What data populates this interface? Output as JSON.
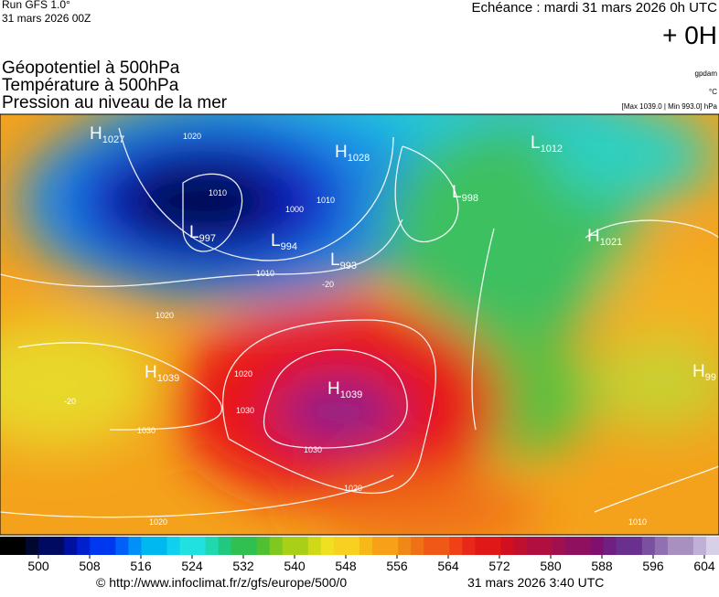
{
  "header": {
    "run": "Run GFS 1.0°",
    "date": "31 mars 2026 00Z",
    "echeance": "Echéance : mardi 31 mars 2026 0h UTC",
    "offset": "+ 0H"
  },
  "titles": [
    "Géopotentiel à 500hPa",
    "Température à 500hPa",
    "Pression au niveau de la mer"
  ],
  "units": [
    "gpdam",
    "°C",
    "[Max 1039.0 | Min 993.0] hPa"
  ],
  "centers": [
    {
      "letter": "H",
      "value": "1027"
    },
    {
      "letter": "H",
      "value": "1028"
    },
    {
      "letter": "L",
      "value": "998"
    },
    {
      "letter": "L",
      "value": "1012"
    },
    {
      "letter": "H",
      "value": "1021"
    },
    {
      "letter": "L",
      "value": "997"
    },
    {
      "letter": "L",
      "value": "994"
    },
    {
      "letter": "L",
      "value": "993"
    },
    {
      "letter": "H",
      "value": "1039"
    },
    {
      "letter": "H",
      "value": "1039"
    },
    {
      "letter": "H",
      "value": "99"
    }
  ],
  "isobar_labels": [
    "1020",
    "1010",
    "1000",
    "1010",
    "1010",
    "1020",
    "1020",
    "1030",
    "1030",
    "1030",
    "1020",
    "1020",
    "1010",
    "-20",
    "-20"
  ],
  "colorbar": {
    "ticks": [
      500,
      508,
      516,
      524,
      532,
      540,
      548,
      556,
      564,
      572,
      580,
      588,
      596,
      604
    ]
  },
  "footer": {
    "url": "© http://www.infoclimat.fr/z/gfs/europe/500/0",
    "time": "31 mars 2026  3:40 UTC"
  }
}
